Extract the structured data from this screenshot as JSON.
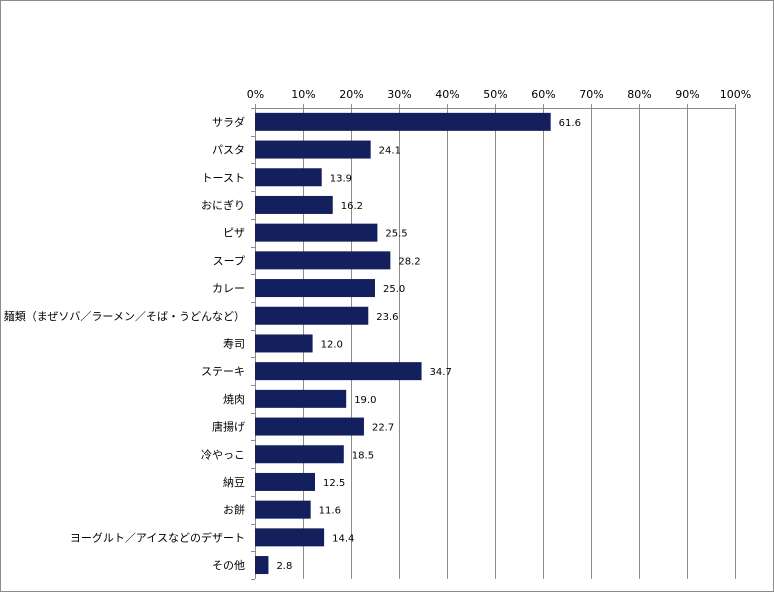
{
  "chart_data": {
    "type": "bar",
    "orientation": "horizontal",
    "categories": [
      "サラダ",
      "パスタ",
      "トースト",
      "おにぎり",
      "ピザ",
      "スープ",
      "カレー",
      "麺類（まぜソバ／ラーメン／そば・うどんなど）",
      "寿司",
      "ステーキ",
      "焼肉",
      "唐揚げ",
      "冷やっこ",
      "納豆",
      "お餅",
      "ヨーグルト／アイスなどのデザート",
      "その他"
    ],
    "values": [
      61.6,
      24.1,
      13.9,
      16.2,
      25.5,
      28.2,
      25.0,
      23.6,
      12.0,
      34.7,
      19.0,
      22.7,
      18.5,
      12.5,
      11.6,
      14.4,
      2.8
    ],
    "value_labels": [
      "61.6",
      "24.1",
      "13.9",
      "16.2",
      "25.5",
      "28.2",
      "25.0",
      "23.6",
      "12.0",
      "34.7",
      "19.0",
      "22.7",
      "18.5",
      "12.5",
      "11.6",
      "14.4",
      "2.8"
    ],
    "xlim": [
      0,
      100
    ],
    "x_ticks": [
      "0%",
      "10%",
      "20%",
      "30%",
      "40%",
      "50%",
      "60%",
      "70%",
      "80%",
      "90%",
      "100%"
    ],
    "x_axis_position": "top",
    "grid": true,
    "legend": "none",
    "title": "",
    "xlabel": "",
    "ylabel": "",
    "colors": {
      "bar": "#14205e",
      "gridline": "#8c8c8c",
      "axis": "#8c8c8c"
    }
  }
}
